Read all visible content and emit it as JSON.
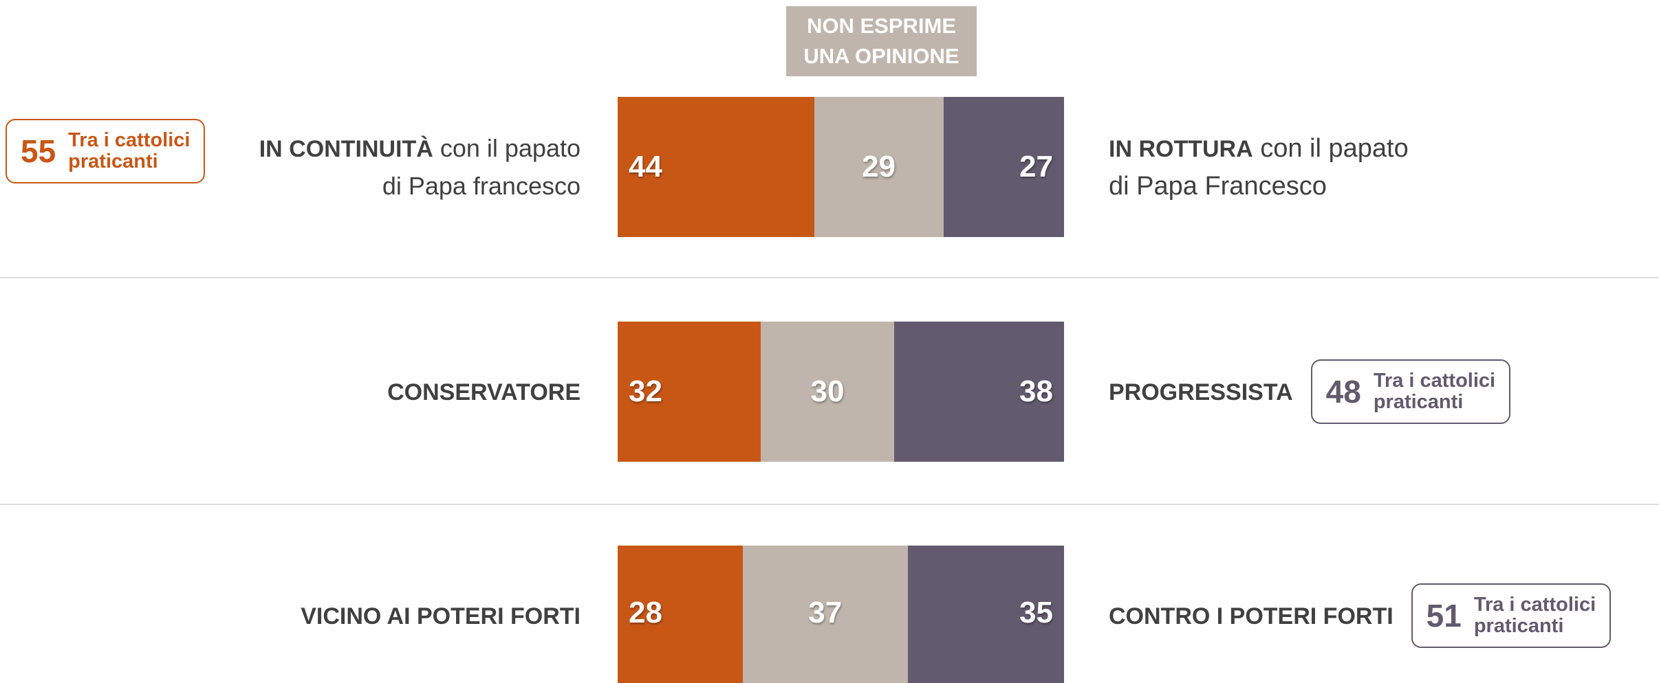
{
  "chart_data": {
    "type": "bar",
    "orientation": "horizontal",
    "stacked": true,
    "xlim": [
      0,
      100
    ],
    "series": [
      {
        "color": "#c85716",
        "values": [
          44,
          32,
          28
        ]
      },
      {
        "name": "NON ESPRIME UNA OPINIONE",
        "color": "#c0b5ac",
        "values": [
          29,
          30,
          37
        ]
      },
      {
        "color": "#625a6e",
        "values": [
          27,
          38,
          35
        ]
      }
    ],
    "rows": [
      {
        "left": {
          "bold": "IN CONTINUITÀ",
          "text": [
            "con il papato",
            "di Papa francesco"
          ],
          "callout": {
            "value": 55,
            "lines": [
              "Tra i cattolici",
              "praticanti"
            ],
            "color": "#c85716"
          }
        },
        "right": {
          "bold": "IN ROTTURA",
          "text": [
            "con il papato",
            "di Papa Francesco"
          ]
        }
      },
      {
        "left": {
          "bold": "CONSERVATORE"
        },
        "right": {
          "bold": "PROGRESSISTA",
          "callout": {
            "value": 48,
            "lines": [
              "Tra i cattolici",
              "praticanti"
            ],
            "color": "#625a6e"
          }
        }
      },
      {
        "left": {
          "bold": "VICINO AI POTERI FORTI"
        },
        "right": {
          "bold": "CONTRO I POTERI FORTI",
          "callout": {
            "value": 51,
            "lines": [
              "Tra i cattolici",
              "praticanti"
            ],
            "color": "#625a6e"
          }
        }
      }
    ]
  }
}
